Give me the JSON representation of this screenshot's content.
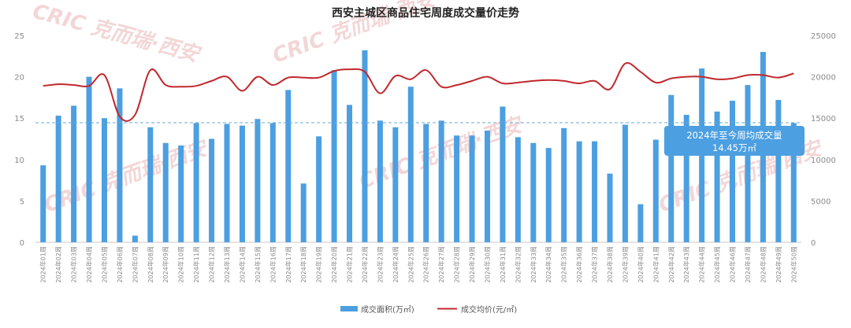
{
  "chart_data": {
    "type": "bar",
    "title": "西安主城区商品住宅周度成交量价走势",
    "categories": [
      "2024年01周",
      "2024年02周",
      "2024年03周",
      "2024年04周",
      "2024年05周",
      "2024年06周",
      "2024年07周",
      "2024年08周",
      "2024年09周",
      "2024年10周",
      "2024年11周",
      "2024年12周",
      "2024年13周",
      "2024年14周",
      "2024年15周",
      "2024年16周",
      "2024年17周",
      "2024年18周",
      "2024年19周",
      "2024年20周",
      "2024年21周",
      "2024年22周",
      "2024年23周",
      "2024年24周",
      "2024年25周",
      "2024年26周",
      "2024年27周",
      "2024年28周",
      "2024年29周",
      "2024年30周",
      "2024年31周",
      "2024年32周",
      "2024年33周",
      "2024年34周",
      "2024年35周",
      "2024年36周",
      "2024年37周",
      "2024年38周",
      "2024年39周",
      "2024年40周",
      "2024年41周",
      "2024年42周",
      "2024年43周",
      "2024年44周",
      "2024年45周",
      "2024年46周",
      "2024年47周",
      "2024年48周",
      "2024年49周",
      "2024年50周"
    ],
    "series": [
      {
        "name": "成交面积(万㎡)",
        "type": "bar",
        "axis": "left",
        "color": "#4c9fe0",
        "values": [
          9.3,
          15.3,
          16.5,
          20.0,
          15.0,
          18.6,
          0.8,
          13.9,
          12.0,
          11.7,
          14.4,
          12.5,
          14.3,
          14.1,
          14.9,
          14.4,
          18.4,
          7.1,
          12.8,
          20.8,
          16.6,
          23.2,
          14.7,
          13.9,
          18.8,
          14.3,
          14.7,
          12.9,
          12.9,
          13.5,
          16.4,
          12.7,
          12.0,
          11.4,
          13.8,
          12.2,
          12.2,
          8.3,
          14.2,
          4.6,
          12.4,
          17.8,
          15.4,
          21.0,
          15.8,
          17.1,
          19.0,
          23.0,
          17.2,
          14.4
        ]
      },
      {
        "name": "成交均价(元/㎡)",
        "type": "line",
        "axis": "right",
        "color": "#c0282d",
        "values": [
          18900,
          19100,
          19000,
          18900,
          20200,
          15200,
          15400,
          20800,
          19000,
          18800,
          18900,
          19500,
          20000,
          18300,
          20000,
          19000,
          19900,
          19900,
          19900,
          20700,
          20900,
          20600,
          18000,
          20100,
          19700,
          20800,
          18800,
          19000,
          19500,
          20000,
          19200,
          19300,
          19500,
          19600,
          19500,
          19200,
          19500,
          18500,
          21600,
          20600,
          19300,
          19800,
          20000,
          20000,
          19700,
          19800,
          20200,
          20200,
          19900,
          20400
        ]
      }
    ],
    "ylim_left": [
      0,
      25
    ],
    "ylim_right": [
      0,
      25000
    ],
    "y_ticks_left": [
      "0",
      "5",
      "10",
      "15",
      "20",
      "25"
    ],
    "y_ticks_right": [
      "0",
      "5000",
      "10000",
      "15000",
      "20000",
      "25000"
    ],
    "reference_line": {
      "value": 14.45,
      "axis": "left"
    },
    "annotation": {
      "line1": "2024年至今周均成交量",
      "line2": "14.45万㎡"
    },
    "legend": {
      "position": "bottom",
      "items": [
        "成交面积(万㎡)",
        "成交均价(元/㎡)"
      ]
    },
    "grid": false,
    "watermark": "CRIC 克而瑞·西安"
  }
}
